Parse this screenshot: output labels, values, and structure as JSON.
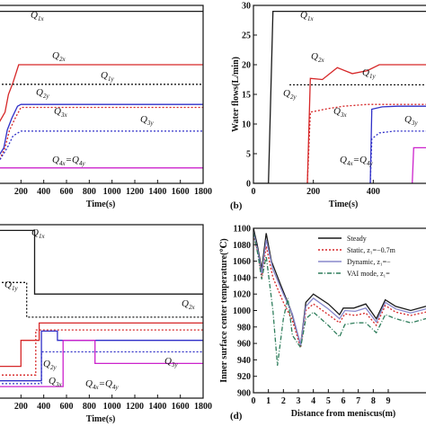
{
  "chart_data": [
    {
      "type": "line",
      "panel": "a",
      "xlabel": "Time(s)",
      "ylabel": "",
      "xlim": [
        0,
        1800
      ],
      "ylim": [
        0,
        30
      ],
      "xticks": [
        "200",
        "400",
        "600",
        "800",
        "1000",
        "1200",
        "1400",
        "1600",
        "1800"
      ],
      "yticks": [],
      "annotations": [
        {
          "main": "Q",
          "sub": "1x"
        },
        {
          "main": "Q",
          "sub": "2x"
        },
        {
          "main": "Q",
          "sub": "1y"
        },
        {
          "main": "Q",
          "sub": "2y"
        },
        {
          "main": "Q",
          "sub": "3x"
        },
        {
          "main": "Q",
          "sub": "3y"
        },
        {
          "main": "Q",
          "sub": "4x",
          "main2": "=Q",
          "sub2": "4y"
        }
      ],
      "series": [
        {
          "color": "#1a1a1a",
          "dash": "",
          "points": [
            [
              0,
              29
            ],
            [
              1800,
              29
            ]
          ]
        },
        {
          "color": "#d62728",
          "dash": "",
          "points": [
            [
              0,
              10
            ],
            [
              60,
              12
            ],
            [
              90,
              15
            ],
            [
              130,
              17
            ],
            [
              180,
              20
            ],
            [
              1800,
              20
            ]
          ]
        },
        {
          "color": "#1a1a1a",
          "dash": "2,2",
          "points": [
            [
              0,
              16.7
            ],
            [
              1800,
              16.7
            ]
          ]
        },
        {
          "color": "#3030c8",
          "dash": "",
          "points": [
            [
              0,
              4.5
            ],
            [
              50,
              6
            ],
            [
              80,
              9
            ],
            [
              120,
              11
            ],
            [
              170,
              13
            ],
            [
              200,
              13.3
            ],
            [
              1800,
              13.3
            ]
          ]
        },
        {
          "color": "#d62728",
          "dash": "2,2",
          "points": [
            [
              0,
              3.5
            ],
            [
              60,
              6
            ],
            [
              100,
              9
            ],
            [
              150,
              11
            ],
            [
              200,
              12.8
            ],
            [
              1800,
              12.8
            ]
          ]
        },
        {
          "color": "#3030c8",
          "dash": "2,2",
          "points": [
            [
              0,
              3.5
            ],
            [
              80,
              6
            ],
            [
              130,
              8
            ],
            [
              200,
              8.8
            ],
            [
              1800,
              8.8
            ]
          ]
        },
        {
          "color": "#cc22cc",
          "dash": "",
          "points": [
            [
              0,
              2.6
            ],
            [
              1800,
              2.6
            ]
          ]
        }
      ]
    },
    {
      "type": "line",
      "panel": "b",
      "plabel": "(b)",
      "xlabel": "Time(s)",
      "ylabel": "Water flows(L/min)",
      "xlim": [
        0,
        600
      ],
      "ylim": [
        0,
        30
      ],
      "xticks": [
        "0",
        "200",
        "400"
      ],
      "yticks": [
        "0",
        "5",
        "10",
        "15",
        "20",
        "25",
        "30"
      ],
      "annotations": [
        {
          "main": "Q",
          "sub": "1x"
        },
        {
          "main": "Q",
          "sub": "2x"
        },
        {
          "main": "Q",
          "sub": "1y"
        },
        {
          "main": "Q",
          "sub": "2y"
        },
        {
          "main": "Q",
          "sub": "3x"
        },
        {
          "main": "Q",
          "sub": "3y"
        },
        {
          "main": "Q",
          "sub": "4x",
          "main2": "=Q",
          "sub2": "4y"
        }
      ],
      "series": [
        {
          "color": "#1a1a1a",
          "dash": "",
          "points": [
            [
              0,
              0
            ],
            [
              50,
              0
            ],
            [
              65,
              29
            ],
            [
              600,
              29
            ]
          ]
        },
        {
          "color": "#d62728",
          "dash": "",
          "points": [
            [
              180,
              0
            ],
            [
              190,
              17.7
            ],
            [
              230,
              17.5
            ],
            [
              280,
              19.5
            ],
            [
              330,
              18.5
            ],
            [
              380,
              19
            ],
            [
              420,
              20
            ],
            [
              600,
              20
            ]
          ]
        },
        {
          "color": "#1a1a1a",
          "dash": "2,2",
          "points": [
            [
              120,
              16.6
            ],
            [
              600,
              16.6
            ]
          ]
        },
        {
          "color": "#3030c8",
          "dash": "",
          "points": [
            [
              390,
              0
            ],
            [
              395,
              12.5
            ],
            [
              430,
              12.9
            ],
            [
              480,
              13
            ],
            [
              600,
              13
            ]
          ]
        },
        {
          "color": "#d62728",
          "dash": "2,2",
          "points": [
            [
              180,
              0
            ],
            [
              190,
              12
            ],
            [
              250,
              12.6
            ],
            [
              300,
              13
            ],
            [
              380,
              13.3
            ],
            [
              600,
              13.3
            ]
          ]
        },
        {
          "color": "#3030c8",
          "dash": "2,2",
          "points": [
            [
              390,
              0
            ],
            [
              395,
              7.5
            ],
            [
              420,
              8.5
            ],
            [
              470,
              8.8
            ],
            [
              600,
              8.8
            ]
          ]
        },
        {
          "color": "#cc22cc",
          "dash": "",
          "points": [
            [
              530,
              0
            ],
            [
              535,
              6
            ],
            [
              600,
              6
            ]
          ]
        }
      ]
    },
    {
      "type": "line",
      "panel": "c",
      "xlabel": "Time(s)",
      "ylabel": "",
      "xlim": [
        0,
        1800
      ],
      "ylim": [
        0,
        30
      ],
      "xticks": [
        "200",
        "400",
        "600",
        "800",
        "1000",
        "1200",
        "1400",
        "1600",
        "1800"
      ],
      "yticks": [],
      "annotations": [
        {
          "main": "Q",
          "sub": "1x"
        },
        {
          "main": "Q",
          "sub": "1y"
        },
        {
          "main": "Q",
          "sub": "2x"
        },
        {
          "main": "Q",
          "sub": "2y"
        },
        {
          "main": "Q",
          "sub": "3y"
        },
        {
          "main": "Q",
          "sub": "3x"
        },
        {
          "main": "Q",
          "sub": "4x",
          "main2": "=Q",
          "sub2": "4y"
        }
      ],
      "series": [
        {
          "color": "#1a1a1a",
          "dash": "",
          "points": [
            [
              0,
              29
            ],
            [
              320,
              29
            ],
            [
              320,
              18
            ],
            [
              1800,
              18
            ]
          ]
        },
        {
          "color": "#1a1a1a",
          "dash": "2,2",
          "points": [
            [
              0,
              20
            ],
            [
              250,
              20
            ],
            [
              250,
              14
            ],
            [
              1800,
              14
            ]
          ]
        },
        {
          "color": "#d62728",
          "dash": "",
          "points": [
            [
              0,
              5.5
            ],
            [
              200,
              5.5
            ],
            [
              200,
              10
            ],
            [
              360,
              10
            ],
            [
              360,
              13
            ],
            [
              1800,
              13
            ]
          ]
        },
        {
          "color": "#d62728",
          "dash": "2,2",
          "points": [
            [
              0,
              4
            ],
            [
              330,
              4
            ],
            [
              330,
              11.8
            ],
            [
              1800,
              11.8
            ]
          ]
        },
        {
          "color": "#3030c8",
          "dash": "",
          "points": [
            [
              0,
              3
            ],
            [
              380,
              3
            ],
            [
              380,
              11.6
            ],
            [
              520,
              11.6
            ],
            [
              520,
              10
            ],
            [
              1800,
              10
            ]
          ]
        },
        {
          "color": "#3030c8",
          "dash": "2,2",
          "points": [
            [
              0,
              2.5
            ],
            [
              380,
              2.5
            ],
            [
              380,
              8
            ],
            [
              1800,
              8
            ]
          ]
        },
        {
          "color": "#cc22cc",
          "dash": "",
          "points": [
            [
              0,
              2
            ],
            [
              570,
              2
            ],
            [
              570,
              10
            ],
            [
              850,
              10
            ],
            [
              850,
              6
            ],
            [
              1800,
              6
            ]
          ]
        }
      ]
    },
    {
      "type": "line",
      "panel": "d",
      "plabel": "(d)",
      "xlabel": "Distance from meniscus(m)",
      "ylabel": "Inner surface center temperature(℃)",
      "xlim": [
        0,
        12
      ],
      "ylim": [
        900,
        1100
      ],
      "xticks": [
        "0",
        "1",
        "2",
        "3",
        "4",
        "5",
        "6",
        "7",
        "8",
        "9"
      ],
      "yticks": [
        "900",
        "920",
        "940",
        "960",
        "980",
        "1000",
        "1020",
        "1040",
        "1060",
        "1080",
        "1100"
      ],
      "legend_position": "top-right",
      "legend": [
        {
          "label": "Steady",
          "color": "#1a1a1a",
          "dash": ""
        },
        {
          "label": "Static, z₁=−0.7m",
          "color": "#d62728",
          "dash": "2,2"
        },
        {
          "label": "Dynamic, z₁=−",
          "color": "#8888cc",
          "dash": ""
        },
        {
          "label": "VAI mode, z₁=",
          "color": "#2e7d5b",
          "dash": "5,2,1,2"
        }
      ],
      "series": [
        {
          "name": "Steady",
          "color": "#1a1a1a",
          "dash": "",
          "points": [
            [
              0,
              1100
            ],
            [
              0.25,
              1080
            ],
            [
              0.55,
              1050
            ],
            [
              0.85,
              1094
            ],
            [
              1.2,
              1060
            ],
            [
              1.8,
              1032
            ],
            [
              2.5,
              1000
            ],
            [
              3.0,
              968
            ],
            [
              3.15,
              958
            ],
            [
              3.5,
              1010
            ],
            [
              4.0,
              1020
            ],
            [
              5.0,
              1008
            ],
            [
              5.75,
              995
            ],
            [
              6.0,
              1003
            ],
            [
              6.7,
              1003
            ],
            [
              7.5,
              1008
            ],
            [
              8.2,
              990
            ],
            [
              8.8,
              1013
            ],
            [
              9.5,
              1005
            ],
            [
              10.5,
              1000
            ],
            [
              11.5,
              1005
            ],
            [
              12,
              1008
            ]
          ]
        },
        {
          "name": "Static, z₁=−0.7m",
          "color": "#d62728",
          "dash": "2,2",
          "points": [
            [
              0,
              1092
            ],
            [
              0.3,
              1070
            ],
            [
              0.55,
              1040
            ],
            [
              0.85,
              1078
            ],
            [
              1.3,
              1040
            ],
            [
              2.0,
              1010
            ],
            [
              2.6,
              988
            ],
            [
              3.15,
              955
            ],
            [
              3.5,
              1000
            ],
            [
              4.0,
              1008
            ],
            [
              5.0,
              995
            ],
            [
              5.75,
              985
            ],
            [
              6.1,
              996
            ],
            [
              6.8,
              994
            ],
            [
              7.5,
              997
            ],
            [
              8.2,
              982
            ],
            [
              8.8,
              1006
            ],
            [
              9.5,
              998
            ],
            [
              10.5,
              994
            ],
            [
              11.5,
              998
            ],
            [
              12,
              1000
            ]
          ]
        },
        {
          "name": "Dynamic, z₁=−",
          "color": "#8888cc",
          "dash": "",
          "points": [
            [
              0,
              1096
            ],
            [
              0.3,
              1072
            ],
            [
              0.55,
              1045
            ],
            [
              0.85,
              1086
            ],
            [
              1.3,
              1050
            ],
            [
              2.0,
              1020
            ],
            [
              2.6,
              996
            ],
            [
              3.15,
              958
            ],
            [
              3.5,
              1005
            ],
            [
              4.0,
              1015
            ],
            [
              5.0,
              1002
            ],
            [
              5.75,
              990
            ],
            [
              6.1,
              1000
            ],
            [
              6.8,
              999
            ],
            [
              7.5,
              1003
            ],
            [
              8.2,
              986
            ],
            [
              8.8,
              1010
            ],
            [
              9.5,
              1002
            ],
            [
              10.5,
              997
            ],
            [
              11.5,
              1002
            ],
            [
              12,
              1004
            ]
          ]
        },
        {
          "name": "VAI mode, z₁=",
          "color": "#2e7d5b",
          "dash": "5,2,1,2",
          "points": [
            [
              0,
              1095
            ],
            [
              0.3,
              1068
            ],
            [
              0.55,
              1038
            ],
            [
              0.85,
              1066
            ],
            [
              1.3,
              1000
            ],
            [
              1.6,
              933
            ],
            [
              2.0,
              990
            ],
            [
              2.3,
              1015
            ],
            [
              2.6,
              970
            ],
            [
              3.15,
              955
            ],
            [
              3.5,
              990
            ],
            [
              4.0,
              998
            ],
            [
              5.0,
              982
            ],
            [
              5.75,
              968
            ],
            [
              6.1,
              983
            ],
            [
              6.8,
              985
            ],
            [
              7.5,
              985
            ],
            [
              8.2,
              973
            ],
            [
              8.8,
              995
            ],
            [
              9.5,
              990
            ],
            [
              10.5,
              985
            ],
            [
              11.5,
              990
            ],
            [
              12,
              992
            ]
          ]
        }
      ]
    }
  ]
}
